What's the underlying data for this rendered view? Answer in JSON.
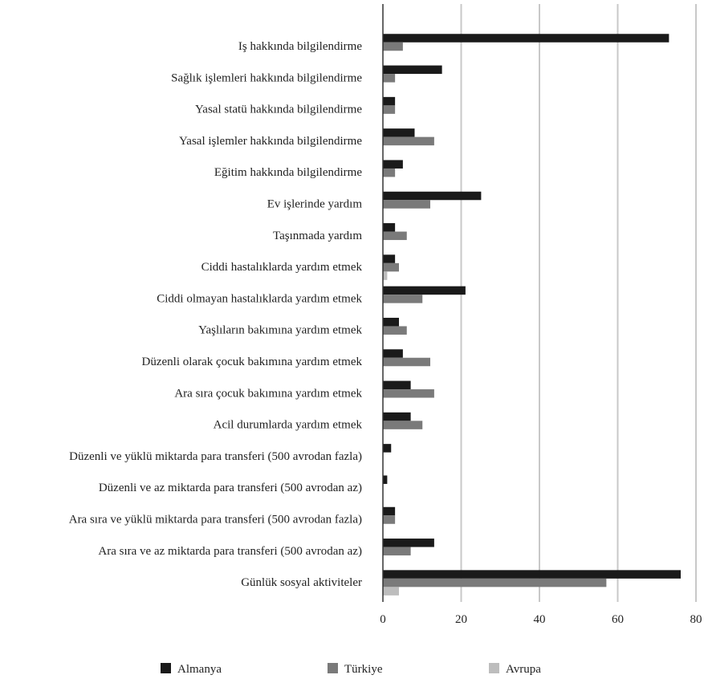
{
  "chart_data": {
    "type": "bar",
    "orientation": "horizontal",
    "categories": [
      "Iş hakkında bilgilendirme",
      "Sağlık işlemleri hakkında bilgilendirme",
      "Yasal statü hakkında bilgilendirme",
      "Yasal işlemler hakkında bilgilendirme",
      "Eğitim hakkında bilgilendirme",
      "Ev işlerinde yardım",
      "Taşınmada yardım",
      "Ciddi hastalıklarda yardım etmek",
      "Ciddi olmayan hastalıklarda yardım etmek",
      "Yaşlıların bakımına yardım etmek",
      "Düzenli olarak çocuk bakımına yardım etmek",
      "Ara sıra çocuk bakımına yardım etmek",
      "Acil durumlarda yardım etmek",
      "Düzenli ve yüklü miktarda para transferi (500 avrodan fazla)",
      "Düzenli ve az miktarda para transferi (500 avrodan az)",
      "Ara sıra ve yüklü miktarda para transferi (500 avrodan fazla)",
      "Ara sıra ve az miktarda para transferi (500 avrodan az)",
      "Günlük sosyal aktiviteler"
    ],
    "series": [
      {
        "name": "Almanya",
        "color": "#1a1a1a",
        "values": [
          73,
          15,
          3,
          8,
          5,
          25,
          3,
          3,
          21,
          4,
          5,
          7,
          7,
          2,
          1,
          3,
          13,
          76
        ]
      },
      {
        "name": "Türkiye",
        "color": "#7a7a7a",
        "values": [
          5,
          3,
          3,
          13,
          3,
          12,
          6,
          4,
          10,
          6,
          12,
          13,
          10,
          0,
          0,
          3,
          7,
          57
        ]
      },
      {
        "name": "Avrupa",
        "color": "#bdbdbd",
        "values": [
          0,
          0,
          0,
          0,
          0,
          0,
          0,
          1,
          0,
          0,
          0,
          0,
          0,
          0,
          0,
          0,
          0,
          4
        ]
      }
    ],
    "xticks": [
      0,
      20,
      40,
      60,
      80
    ],
    "xlim": [
      0,
      80
    ],
    "grid": true,
    "legend": "bottom",
    "title": "",
    "xlabel": "",
    "ylabel": ""
  }
}
